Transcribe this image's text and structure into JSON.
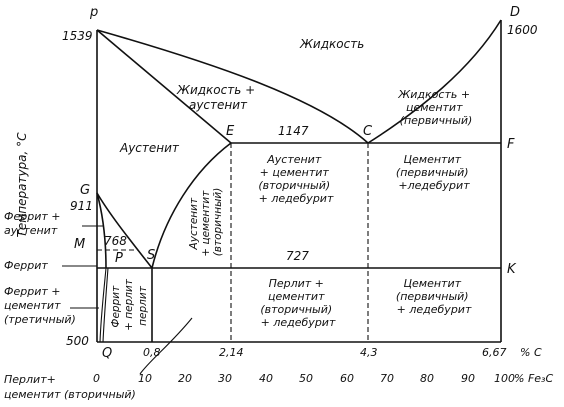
{
  "y_axis_label": "Температура, °С",
  "points": {
    "p": "p",
    "D": "D",
    "E": "E",
    "C": "C",
    "F": "F",
    "G": "G",
    "M": "M",
    "S": "S",
    "P": "P",
    "K": "K",
    "Q": "Q"
  },
  "temperatures": {
    "t1539": "1539",
    "t1600": "1600",
    "t1147": "1147",
    "t911": "911",
    "t768": "768",
    "t727": "727",
    "t500": "500"
  },
  "regions": {
    "liquid": "Жидкость",
    "liquid_austenite": [
      "Жидкость +",
      "аустенит"
    ],
    "liquid_cementite": [
      "Жидкость +",
      "цементит",
      "(первичный)"
    ],
    "austenite": "Аустенит",
    "austenite_cem_led": [
      "Аустенит",
      "+ цементит",
      "(вторичный)",
      "+ ледебурит"
    ],
    "cem_led_top": [
      "Цементит",
      "(первичный)",
      "+ледебурит"
    ],
    "austenite_cem2_vertical": [
      "Аустенит",
      "+ цементит",
      "(вторичный)"
    ],
    "pearlite_cem_led": [
      "Перлит +",
      "цементит",
      "(вторичный)",
      "+ ледебурит"
    ],
    "cem_led_bottom": [
      "Цементит",
      "(первичный)",
      "+ ледебурит"
    ],
    "ferrite_pearlite_vertical": [
      "Феррит",
      "+ перлит"
    ],
    "pearlite_vertical": "перлит"
  },
  "side_labels": {
    "ferrite_austenite": [
      "Феррит +",
      "аустенит"
    ],
    "ferrite": "Феррит",
    "ferrite_cementite": [
      "Феррит +",
      "цементит",
      "(третичный)"
    ],
    "pearlite_cementite": [
      "Перлит+",
      "цементит (вторичный)"
    ]
  },
  "x_axis_carbon": {
    "ticks": [
      "0,8",
      "2,14",
      "4,3",
      "6,67"
    ],
    "unit": "% C"
  },
  "x_axis_fe3c": {
    "ticks": [
      "0",
      "10",
      "20",
      "30",
      "40",
      "50",
      "60",
      "70",
      "80",
      "90",
      "100"
    ],
    "unit": "% Fe₃C"
  }
}
